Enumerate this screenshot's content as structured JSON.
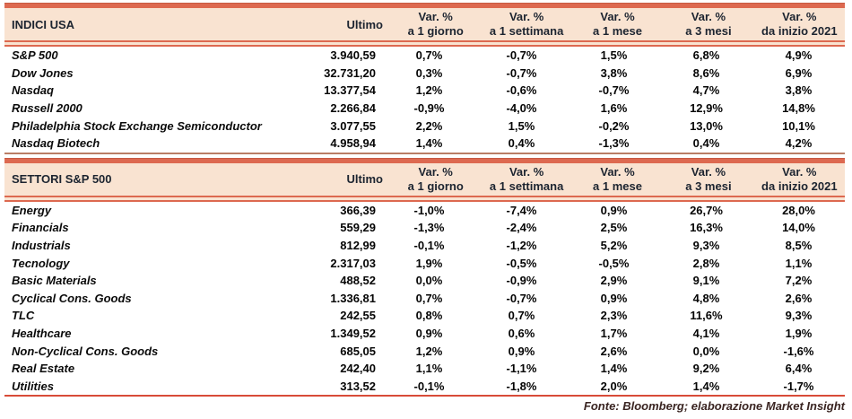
{
  "sections": [
    {
      "title": "INDICI USA",
      "ultimo_label": "Ultimo",
      "var_columns": [
        {
          "line1": "Var. %",
          "line2": "a 1 giorno"
        },
        {
          "line1": "Var. %",
          "line2": "a 1 settimana"
        },
        {
          "line1": "Var. %",
          "line2": "a 1 mese"
        },
        {
          "line1": "Var. %",
          "line2": "a 3 mesi"
        },
        {
          "line1": "Var. %",
          "line2": "da inizio 2021"
        }
      ],
      "rows": [
        {
          "name": "S&P 500",
          "ultimo": "3.940,59",
          "vars": [
            "0,7%",
            "-0,7%",
            "1,5%",
            "6,8%",
            "4,9%"
          ]
        },
        {
          "name": "Dow Jones",
          "ultimo": "32.731,20",
          "vars": [
            "0,3%",
            "-0,7%",
            "3,8%",
            "8,6%",
            "6,9%"
          ]
        },
        {
          "name": "Nasdaq",
          "ultimo": "13.377,54",
          "vars": [
            "1,2%",
            "-0,6%",
            "-0,7%",
            "4,7%",
            "3,8%"
          ]
        },
        {
          "name": "Russell 2000",
          "ultimo": "2.266,84",
          "vars": [
            "-0,9%",
            "-4,0%",
            "1,6%",
            "12,9%",
            "14,8%"
          ]
        },
        {
          "name": "Philadelphia Stock Exchange Semiconductor",
          "ultimo": "3.077,55",
          "vars": [
            "2,2%",
            "1,5%",
            "-0,2%",
            "13,0%",
            "10,1%"
          ]
        },
        {
          "name": "Nasdaq Biotech",
          "ultimo": "4.958,94",
          "vars": [
            "1,4%",
            "0,4%",
            "-1,3%",
            "0,4%",
            "4,2%"
          ]
        }
      ]
    },
    {
      "title": "SETTORI S&P 500",
      "ultimo_label": "Ultimo",
      "var_columns": [
        {
          "line1": "Var. %",
          "line2": "a 1 giorno"
        },
        {
          "line1": "Var. %",
          "line2": "a 1 settimana"
        },
        {
          "line1": "Var. %",
          "line2": "a 1 mese"
        },
        {
          "line1": "Var. %",
          "line2": "a 3 mesi"
        },
        {
          "line1": "Var. %",
          "line2": "da inizio 2021"
        }
      ],
      "rows": [
        {
          "name": "Energy",
          "ultimo": "366,39",
          "vars": [
            "-1,0%",
            "-7,4%",
            "0,9%",
            "26,7%",
            "28,0%"
          ]
        },
        {
          "name": "Financials",
          "ultimo": "559,29",
          "vars": [
            "-1,3%",
            "-2,4%",
            "2,5%",
            "16,3%",
            "14,0%"
          ]
        },
        {
          "name": "Industrials",
          "ultimo": "812,99",
          "vars": [
            "-0,1%",
            "-1,2%",
            "5,2%",
            "9,3%",
            "8,5%"
          ]
        },
        {
          "name": "Tecnology",
          "ultimo": "2.317,03",
          "vars": [
            "1,9%",
            "-0,5%",
            "-0,5%",
            "2,8%",
            "1,1%"
          ]
        },
        {
          "name": "Basic Materials",
          "ultimo": "488,52",
          "vars": [
            "0,0%",
            "-0,9%",
            "2,9%",
            "9,1%",
            "7,2%"
          ]
        },
        {
          "name": "Cyclical Cons. Goods",
          "ultimo": "1.336,81",
          "vars": [
            "0,7%",
            "-0,7%",
            "0,9%",
            "4,8%",
            "2,6%"
          ]
        },
        {
          "name": "TLC",
          "ultimo": "242,55",
          "vars": [
            "0,8%",
            "0,7%",
            "2,3%",
            "11,6%",
            "9,3%"
          ]
        },
        {
          "name": "Healthcare",
          "ultimo": "1.349,52",
          "vars": [
            "0,9%",
            "0,6%",
            "1,7%",
            "4,1%",
            "1,9%"
          ]
        },
        {
          "name": "Non-Cyclical Cons. Goods",
          "ultimo": "685,05",
          "vars": [
            "1,2%",
            "0,9%",
            "2,6%",
            "0,0%",
            "-1,6%"
          ]
        },
        {
          "name": "Real Estate",
          "ultimo": "242,40",
          "vars": [
            "1,1%",
            "-1,1%",
            "1,4%",
            "9,2%",
            "6,4%"
          ]
        },
        {
          "name": "Utilities",
          "ultimo": "313,52",
          "vars": [
            "-0,1%",
            "-1,8%",
            "2,0%",
            "1,4%",
            "-1,7%"
          ]
        }
      ]
    }
  ],
  "footer": "Fonte: Bloomberg; elaborazione Market Insight",
  "colors": {
    "header_bg": "#f9e3d1",
    "accent_line": "#dd6950",
    "section_divider": "#b97e66",
    "bottom_line": "#d84b38",
    "header_text": "#1c2430",
    "footer_text": "#3a2522"
  }
}
